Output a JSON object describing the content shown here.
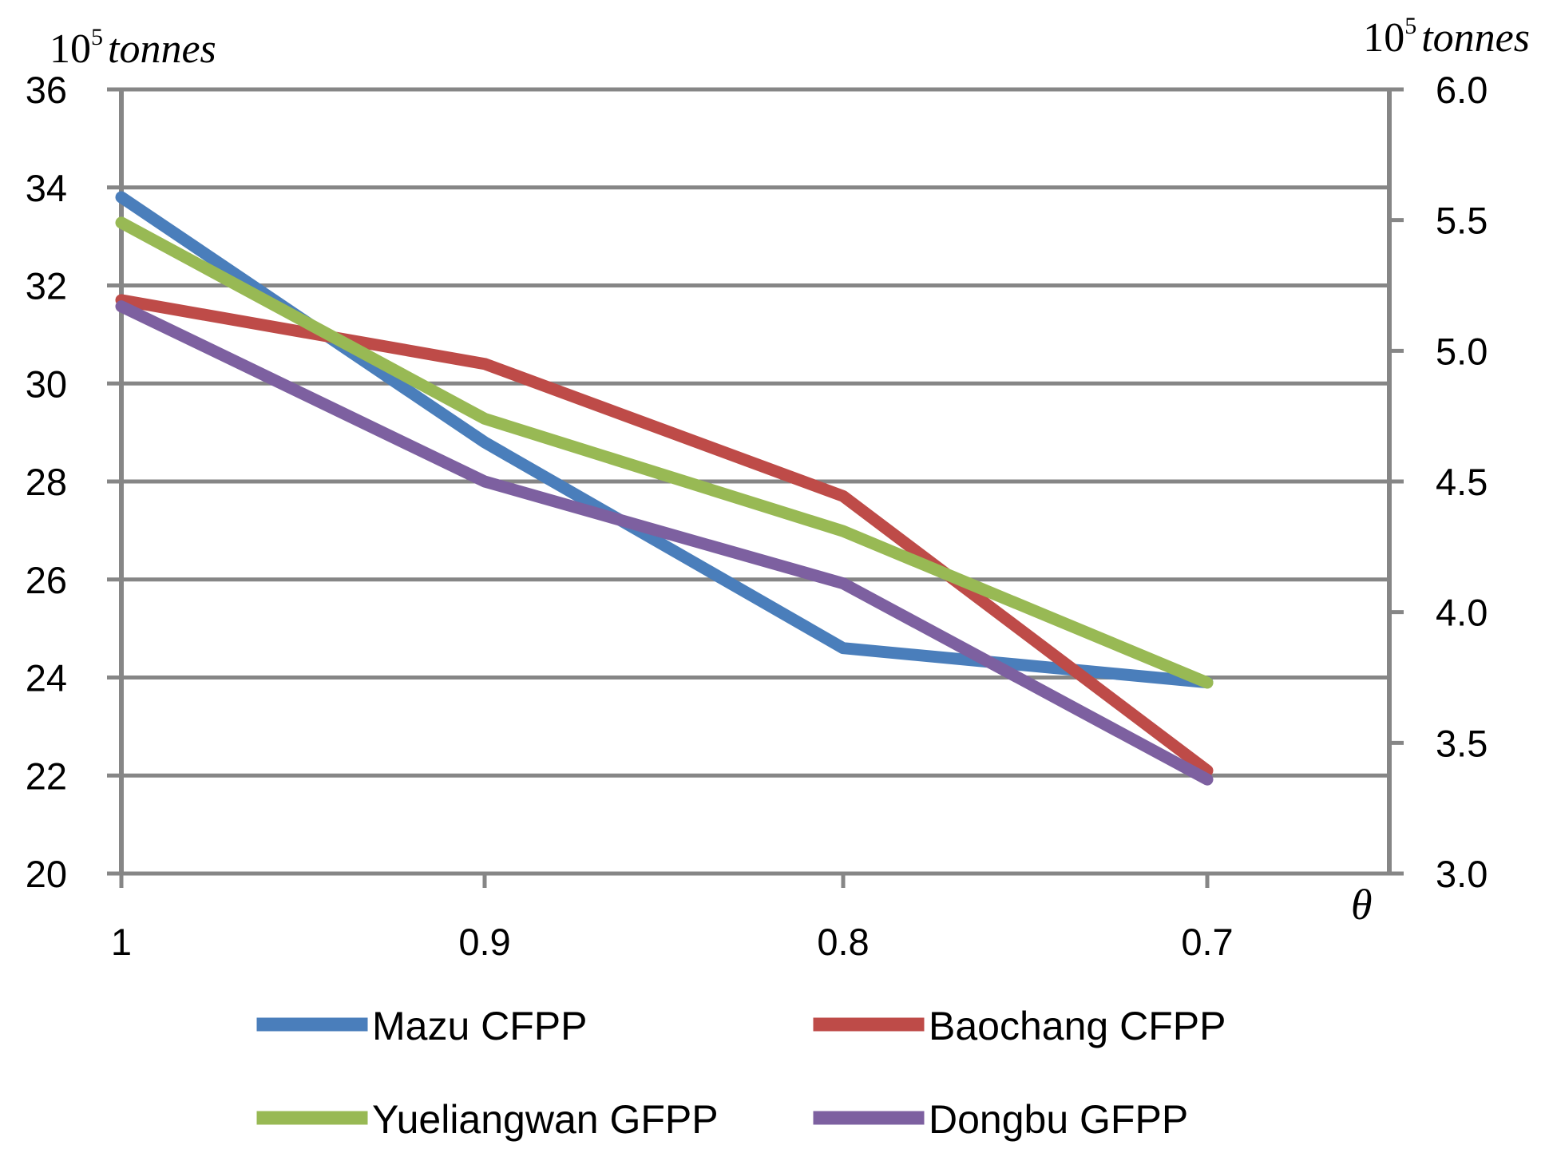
{
  "chart_data": {
    "type": "line",
    "title": "",
    "xlabel": "θ",
    "categories": [
      "1",
      "0.9",
      "0.8",
      "0.7"
    ],
    "y_left": {
      "unit_base": "10",
      "unit_exp": "5",
      "unit_word": "tonnes",
      "ylim": [
        20,
        36
      ],
      "ticks": [
        "20",
        "22",
        "24",
        "26",
        "28",
        "30",
        "32",
        "34",
        "36"
      ]
    },
    "y_right": {
      "unit_base": "10",
      "unit_exp": "5",
      "unit_word": "tonnes",
      "ylim": [
        3.0,
        6.0
      ],
      "ticks": [
        "3.0",
        "3.5",
        "4.0",
        "4.5",
        "5.0",
        "5.5",
        "6.0"
      ]
    },
    "grid": true,
    "legend_position": "bottom",
    "series": [
      {
        "name": "Mazu CFPP",
        "axis": "left",
        "color": "#4a7ebb",
        "values": [
          33.8,
          28.8,
          24.6,
          23.9
        ]
      },
      {
        "name": "Baochang CFPP",
        "axis": "left",
        "color": "#be4b48",
        "values": [
          31.7,
          30.4,
          27.7,
          22.1
        ]
      },
      {
        "name": "Yueliangwan GFPP",
        "axis": "right",
        "color": "#98b954",
        "values": [
          5.49,
          4.74,
          4.31,
          3.73
        ]
      },
      {
        "name": "Dongbu GFPP",
        "axis": "right",
        "color": "#7d60a0",
        "values": [
          5.17,
          4.5,
          4.11,
          3.36
        ]
      }
    ]
  }
}
